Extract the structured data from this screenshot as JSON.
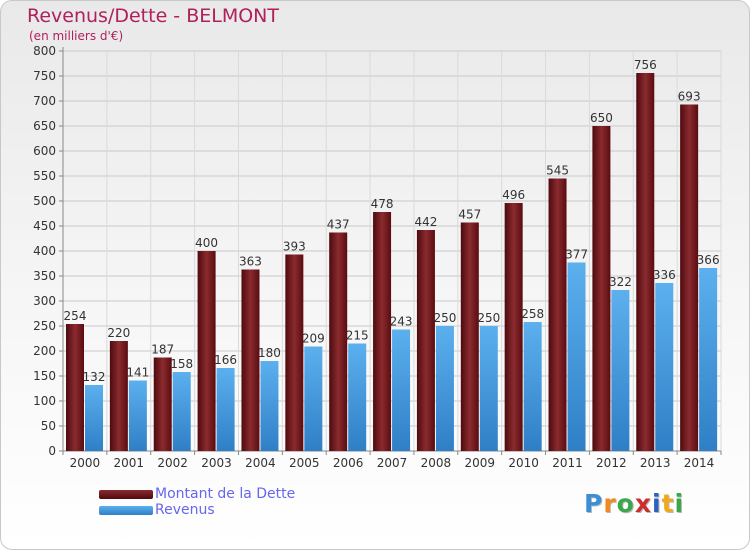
{
  "chart_data": {
    "type": "bar",
    "title": "Revenus/Dette - BELMONT",
    "subtitle": "(en milliers d'€)",
    "categories": [
      "2000",
      "2001",
      "2002",
      "2003",
      "2004",
      "2005",
      "2006",
      "2007",
      "2008",
      "2009",
      "2010",
      "2011",
      "2012",
      "2013",
      "2014"
    ],
    "series": [
      {
        "name": "Montant de la Dette",
        "color": "#6b1418",
        "values": [
          254,
          220,
          187,
          400,
          363,
          393,
          437,
          478,
          442,
          457,
          496,
          545,
          650,
          756,
          693
        ]
      },
      {
        "name": "Revenus",
        "color": "#3c96dc",
        "values": [
          132,
          141,
          158,
          166,
          180,
          209,
          215,
          243,
          250,
          250,
          258,
          377,
          322,
          336,
          366
        ]
      }
    ],
    "ylim": [
      0,
      800
    ],
    "ytick_step": 50,
    "grid": true,
    "legend_position": "bottom-left",
    "data_labels": true
  },
  "brand": {
    "letters": [
      "P",
      "r",
      "o",
      "x",
      "i",
      "t",
      "i"
    ],
    "colors": [
      "#3c8fd6",
      "#f08a1e",
      "#3aa84a",
      "#cc2e2e",
      "#2f5fbf",
      "#f0a81e",
      "#3aa84a"
    ]
  }
}
